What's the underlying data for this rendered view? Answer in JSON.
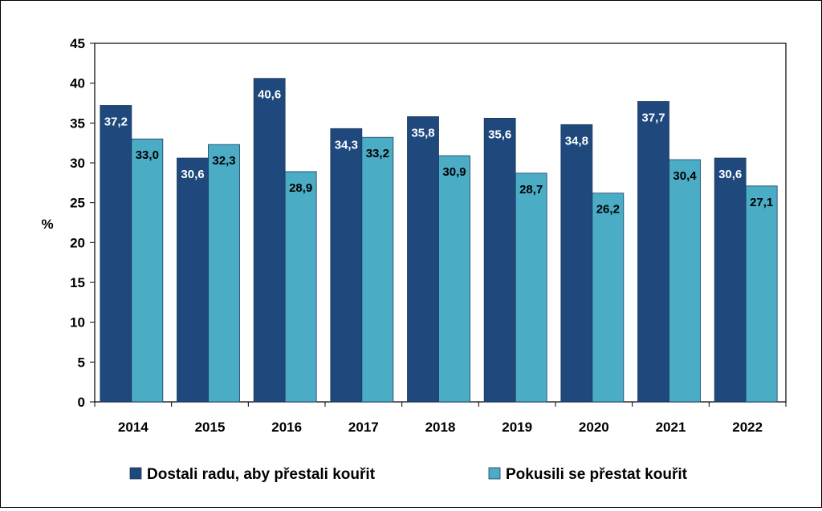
{
  "chart_data": {
    "type": "bar",
    "ylabel": "%",
    "xlabel": "",
    "ylim": [
      0,
      45
    ],
    "y_ticks": [
      "0",
      "5",
      "10",
      "15",
      "20",
      "25",
      "30",
      "35",
      "40",
      "45"
    ],
    "categories": [
      "2014",
      "2015",
      "2016",
      "2017",
      "2018",
      "2019",
      "2020",
      "2021",
      "2022"
    ],
    "series": [
      {
        "name": "Dostali radu, aby přestali kouřit",
        "color": "#1f497d",
        "values": [
          37.2,
          30.6,
          40.6,
          34.3,
          35.8,
          35.6,
          34.8,
          37.7,
          30.6
        ],
        "labels": [
          "37,2",
          "30,6",
          "40,6",
          "34,3",
          "35,8",
          "35,6",
          "34,8",
          "37,7",
          "30,6"
        ]
      },
      {
        "name": "Pokusili se přestat kouřit",
        "color": "#4bacc6",
        "values": [
          33.0,
          32.3,
          28.9,
          33.2,
          30.9,
          28.7,
          26.2,
          30.4,
          27.1
        ],
        "labels": [
          "33,0",
          "32,3",
          "28,9",
          "33,2",
          "30,9",
          "28,7",
          "26,2",
          "30,4",
          "27,1"
        ]
      }
    ],
    "legend_position": "bottom",
    "grid": false
  }
}
